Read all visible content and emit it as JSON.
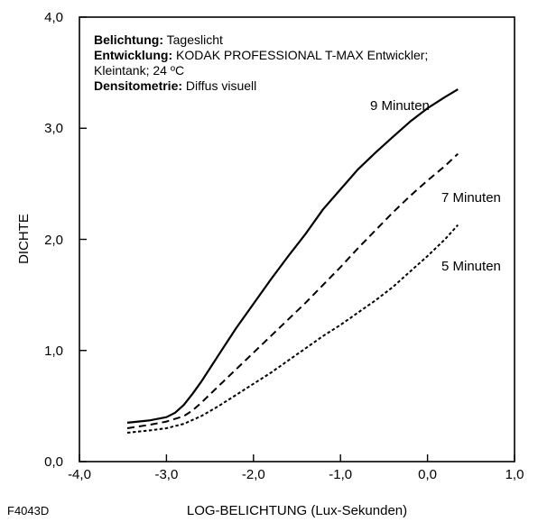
{
  "chart_data": {
    "type": "line",
    "xlabel": "LOG-BELICHTUNG (Lux-Sekunden)",
    "ylabel": "DICHTE",
    "xlim": [
      -4.0,
      1.0
    ],
    "ylim": [
      0.0,
      4.0
    ],
    "x_ticks": [
      "-4,0",
      "-3,0",
      "-2,0",
      "-1,0",
      "0,0",
      "1,0"
    ],
    "y_ticks": [
      "0,0",
      "1,0",
      "2,0",
      "3,0",
      "4,0"
    ],
    "grid": false,
    "figure_id": "F4043D",
    "annotations": {
      "exposure_label": "Belichtung:",
      "exposure_value": "Tageslicht",
      "development_label": "Entwicklung:",
      "development_value": "KODAK PROFESSIONAL T-MAX Entwickler;",
      "development_value_2": "Kleintank; 24 ºC",
      "densitometry_label": "Densitometrie:",
      "densitometry_value": "Diffus visuell"
    },
    "series": [
      {
        "name": "9 Minuten",
        "style": "solid",
        "color": "#000000",
        "x": [
          -3.45,
          -3.2,
          -3.0,
          -2.9,
          -2.8,
          -2.7,
          -2.6,
          -2.5,
          -2.4,
          -2.2,
          -2.0,
          -1.8,
          -1.6,
          -1.4,
          -1.2,
          -1.0,
          -0.8,
          -0.6,
          -0.4,
          -0.2,
          0.0,
          0.2,
          0.35
        ],
        "y": [
          0.35,
          0.37,
          0.4,
          0.44,
          0.51,
          0.61,
          0.72,
          0.84,
          0.96,
          1.2,
          1.42,
          1.64,
          1.85,
          2.05,
          2.27,
          2.45,
          2.63,
          2.78,
          2.92,
          3.06,
          3.18,
          3.28,
          3.35
        ]
      },
      {
        "name": "7 Minuten",
        "style": "dashed",
        "color": "#000000",
        "x": [
          -3.45,
          -3.2,
          -3.0,
          -2.8,
          -2.7,
          -2.6,
          -2.4,
          -2.2,
          -2.0,
          -1.8,
          -1.6,
          -1.4,
          -1.2,
          -1.0,
          -0.8,
          -0.6,
          -0.4,
          -0.2,
          0.0,
          0.2,
          0.35
        ],
        "y": [
          0.3,
          0.33,
          0.36,
          0.41,
          0.46,
          0.53,
          0.68,
          0.83,
          0.98,
          1.13,
          1.28,
          1.43,
          1.59,
          1.75,
          1.92,
          2.08,
          2.24,
          2.39,
          2.53,
          2.66,
          2.77
        ]
      },
      {
        "name": "5 Minuten",
        "style": "dotted",
        "color": "#000000",
        "x": [
          -3.45,
          -3.2,
          -3.0,
          -2.8,
          -2.6,
          -2.4,
          -2.2,
          -2.0,
          -1.8,
          -1.6,
          -1.4,
          -1.2,
          -1.0,
          -0.8,
          -0.6,
          -0.4,
          -0.2,
          0.0,
          0.2,
          0.35
        ],
        "y": [
          0.26,
          0.28,
          0.3,
          0.34,
          0.41,
          0.5,
          0.6,
          0.7,
          0.8,
          0.91,
          1.02,
          1.13,
          1.23,
          1.34,
          1.45,
          1.57,
          1.71,
          1.85,
          2.0,
          2.13
        ]
      }
    ]
  }
}
